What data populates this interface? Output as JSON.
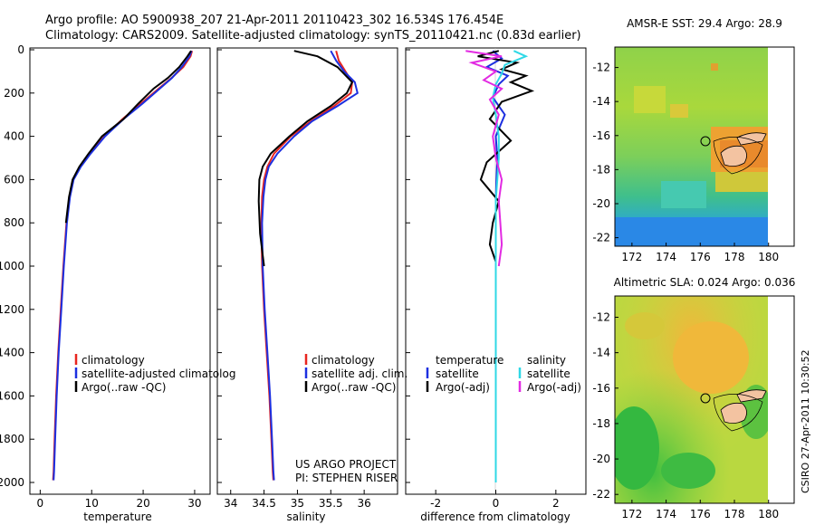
{
  "header": {
    "line1": "Argo profile: AO 5900938_207 21-Apr-2011 20110423_302 16.534S 176.454E",
    "line2": "Climatology: CARS2009. Satellite-adjusted climatology: synTS_20110421.nc (0.83d earlier)"
  },
  "colors": {
    "red": "#e8251f",
    "blue": "#1c2fe0",
    "black": "#000000",
    "cyan": "#2fd8e6",
    "magenta": "#e22ae2"
  },
  "credit": {
    "project": "US ARGO PROJECT",
    "pi": "PI: STEPHEN RISER"
  },
  "stamp": "CSIRO 27-Apr-2011 10:30:52",
  "chart_data": [
    {
      "type": "line",
      "id": "temperature",
      "xlabel": "temperature",
      "ylabel": "",
      "xlim": [
        -2,
        33
      ],
      "ylim": [
        2050,
        0
      ],
      "xticks": [
        "0",
        "10",
        "20",
        "30"
      ],
      "yticks": [
        "0",
        "200",
        "400",
        "600",
        "800",
        "1000",
        "1200",
        "1400",
        "1600",
        "1800",
        "2000"
      ],
      "legend": [
        "climatology",
        "satellite-adjusted climatolog",
        "Argo(..raw -QC)"
      ],
      "series": [
        {
          "name": "climatology",
          "color": "red",
          "x": [
            29.5,
            29.2,
            27.8,
            25.5,
            23,
            19.5,
            16,
            12.5,
            9.5,
            7.8,
            6.4,
            5.7,
            5.1,
            4.5,
            4.0,
            3.5,
            3.1,
            2.8,
            2.6,
            2.5
          ],
          "y": [
            5,
            30,
            80,
            130,
            180,
            250,
            320,
            400,
            480,
            540,
            600,
            680,
            800,
            1000,
            1200,
            1400,
            1600,
            1800,
            1950,
            1990
          ]
        },
        {
          "name": "satellite-adjusted climatology",
          "color": "blue",
          "x": [
            29.4,
            29.0,
            27.5,
            25.6,
            23.2,
            19.8,
            16.2,
            12.6,
            9.8,
            7.9,
            6.5,
            5.8,
            5.2,
            4.6,
            4.1,
            3.6,
            3.2,
            2.9,
            2.7,
            2.6
          ],
          "y": [
            5,
            30,
            80,
            130,
            180,
            250,
            320,
            400,
            480,
            540,
            600,
            680,
            800,
            1000,
            1200,
            1400,
            1600,
            1800,
            1950,
            1990
          ]
        },
        {
          "name": "Argo(..raw -QC)",
          "color": "black",
          "x": [
            29.3,
            28.6,
            27.0,
            24.8,
            22.0,
            19.0,
            16.2,
            12.0,
            9.4,
            7.6,
            6.3,
            5.6,
            5.0
          ],
          "y": [
            5,
            30,
            80,
            130,
            180,
            250,
            320,
            400,
            480,
            540,
            600,
            680,
            800
          ]
        }
      ]
    },
    {
      "type": "line",
      "id": "salinity",
      "xlabel": "salinity",
      "ylabel": "",
      "xlim": [
        33.8,
        36.5
      ],
      "ylim": [
        2050,
        0
      ],
      "xticks": [
        "34",
        "34.5",
        "35",
        "35.5",
        "36"
      ],
      "legend": [
        "climatology",
        "satellite adj. clim.",
        "Argo(..raw -QC)"
      ],
      "series": [
        {
          "name": "climatology",
          "color": "red",
          "x": [
            35.58,
            35.62,
            35.72,
            35.82,
            35.8,
            35.55,
            35.2,
            34.9,
            34.65,
            34.55,
            34.5,
            34.47,
            34.46,
            34.47,
            34.5,
            34.54,
            34.58,
            34.61,
            34.63,
            34.64
          ],
          "y": [
            5,
            50,
            100,
            150,
            200,
            260,
            330,
            400,
            480,
            540,
            600,
            680,
            800,
            1000,
            1200,
            1400,
            1600,
            1800,
            1950,
            1990
          ]
        },
        {
          "name": "satellite adj. clim.",
          "color": "blue",
          "x": [
            35.5,
            35.58,
            35.7,
            35.86,
            35.9,
            35.6,
            35.22,
            34.95,
            34.7,
            34.57,
            34.52,
            34.49,
            34.47,
            34.48,
            34.51,
            34.55,
            34.59,
            34.62,
            34.64,
            34.65
          ],
          "y": [
            5,
            50,
            100,
            150,
            200,
            260,
            330,
            400,
            480,
            540,
            600,
            680,
            800,
            1000,
            1200,
            1400,
            1600,
            1800,
            1950,
            1990
          ]
        },
        {
          "name": "Argo(..raw -QC)",
          "color": "black",
          "x": [
            34.95,
            35.3,
            35.6,
            35.82,
            35.74,
            35.5,
            35.15,
            34.88,
            34.6,
            34.48,
            34.43,
            34.42,
            34.44,
            34.5
          ],
          "y": [
            5,
            30,
            80,
            150,
            200,
            260,
            330,
            400,
            480,
            540,
            600,
            700,
            850,
            1000
          ]
        }
      ]
    },
    {
      "type": "line",
      "id": "difference",
      "xlabel": "difference from climatology",
      "ylabel": "",
      "xlim": [
        -3.0,
        3.0
      ],
      "ylim": [
        2050,
        0
      ],
      "xticks": [
        "-2",
        "0",
        "2"
      ],
      "legend": [
        "temperature",
        "satellite",
        "Argo(-adj)",
        "salinity",
        "satellite",
        "Argo(-adj)"
      ],
      "series": [
        {
          "name": "temperature satellite",
          "color": "blue",
          "x": [
            -0.1,
            0.2,
            -0.3,
            0.4,
            0.1,
            -0.1,
            0.3,
            0.0,
            0.05,
            0.02,
            0.0,
            0.0,
            0.0,
            0.0,
            0.0
          ],
          "y": [
            5,
            40,
            80,
            120,
            160,
            220,
            300,
            400,
            500,
            600,
            700,
            800,
            1000,
            1500,
            2000
          ]
        },
        {
          "name": "temperature Argo(-adj)",
          "color": "black",
          "x": [
            0.1,
            -0.6,
            0.7,
            0.2,
            1.0,
            0.5,
            1.2,
            0.2,
            -0.2,
            0.5,
            -0.3,
            -0.5,
            0.1,
            -0.1,
            -0.2,
            0.0
          ],
          "y": [
            5,
            30,
            60,
            90,
            120,
            150,
            190,
            240,
            320,
            420,
            520,
            600,
            700,
            800,
            900,
            980
          ]
        },
        {
          "name": "salinity satellite",
          "color": "cyan",
          "x": [
            0.6,
            1.0,
            0.3,
            0.2,
            0.0,
            -0.1,
            0.0,
            0.1,
            0.1,
            0.05,
            0.0,
            0.0,
            0.0,
            0.0
          ],
          "y": [
            5,
            30,
            70,
            110,
            160,
            220,
            300,
            400,
            500,
            600,
            700,
            800,
            1000,
            2000
          ]
        },
        {
          "name": "salinity Argo(-adj)",
          "color": "magenta",
          "x": [
            -1.0,
            0.2,
            -0.8,
            0.0,
            -0.4,
            0.2,
            -0.2,
            0.1,
            -0.1,
            0.0,
            0.2,
            0.1,
            0.15,
            0.2,
            0.1
          ],
          "y": [
            5,
            30,
            60,
            100,
            140,
            180,
            230,
            300,
            400,
            500,
            600,
            700,
            800,
            900,
            1000
          ]
        }
      ]
    },
    {
      "type": "heatmap",
      "id": "sst",
      "title": "AMSR-E SST: 29.4 Argo: 28.9",
      "xticks": [
        "172",
        "174",
        "176",
        "178",
        "180"
      ],
      "yticks": [
        "-12",
        "-14",
        "-16",
        "-18",
        "-20",
        "-22"
      ],
      "xlim": [
        171,
        181.5
      ],
      "ylim": [
        -22.5,
        -10.8
      ],
      "argo_position": {
        "lon": 176.454,
        "lat": -16.534
      }
    },
    {
      "type": "heatmap",
      "id": "sla",
      "title": "Altimetric SLA: 0.024 Argo: 0.036",
      "xticks": [
        "172",
        "174",
        "176",
        "178",
        "180"
      ],
      "yticks": [
        "-12",
        "-14",
        "-16",
        "-18",
        "-20",
        "-22"
      ],
      "xlim": [
        171,
        181.5
      ],
      "ylim": [
        -22.5,
        -10.8
      ],
      "argo_position": {
        "lon": 176.454,
        "lat": -16.534
      }
    }
  ]
}
